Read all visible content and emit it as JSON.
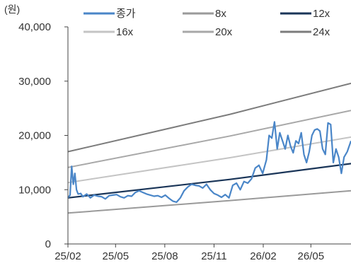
{
  "chart_data": {
    "type": "line",
    "unit": "(원)",
    "ylim": [
      0,
      40000
    ],
    "yticks": [
      0,
      10000,
      20000,
      30000,
      40000
    ],
    "ytick_labels": [
      "0",
      "10,000",
      "20,000",
      "30,000",
      "40,000"
    ],
    "xlim": [
      "2025-02-01",
      "2026-07-15"
    ],
    "xticks": [
      "2025-02-01",
      "2025-05-01",
      "2025-08-01",
      "2025-11-01",
      "2026-02-01",
      "2026-05-01"
    ],
    "xtick_labels": [
      "25/02",
      "25/05",
      "25/08",
      "25/11",
      "26/02",
      "26/05"
    ],
    "grid": false,
    "legend_position": "top",
    "band_dates": [
      "2025-02-01",
      "2025-12-01",
      "2026-07-15"
    ],
    "series": [
      {
        "name": "종가",
        "color": "#4a86c8",
        "width": 2.2,
        "x": [
          "2025-02-01",
          "2025-02-05",
          "2025-02-08",
          "2025-02-11",
          "2025-02-14",
          "2025-02-17",
          "2025-02-20",
          "2025-02-25",
          "2025-03-01",
          "2025-03-08",
          "2025-03-15",
          "2025-03-22",
          "2025-03-29",
          "2025-04-05",
          "2025-04-12",
          "2025-04-19",
          "2025-04-26",
          "2025-05-03",
          "2025-05-10",
          "2025-05-17",
          "2025-05-24",
          "2025-05-31",
          "2025-06-07",
          "2025-06-14",
          "2025-06-21",
          "2025-06-28",
          "2025-07-05",
          "2025-07-12",
          "2025-07-19",
          "2025-07-26",
          "2025-08-02",
          "2025-08-09",
          "2025-08-16",
          "2025-08-23",
          "2025-08-30",
          "2025-09-06",
          "2025-09-13",
          "2025-09-20",
          "2025-09-27",
          "2025-10-04",
          "2025-10-11",
          "2025-10-18",
          "2025-10-25",
          "2025-11-01",
          "2025-11-08",
          "2025-11-15",
          "2025-11-22",
          "2025-11-29",
          "2025-12-06",
          "2025-12-13",
          "2025-12-20",
          "2025-12-27",
          "2026-01-03",
          "2026-01-10",
          "2026-01-17",
          "2026-01-24",
          "2026-01-31",
          "2026-02-07",
          "2026-02-12",
          "2026-02-17",
          "2026-02-22",
          "2026-02-27",
          "2026-03-04",
          "2026-03-09",
          "2026-03-14",
          "2026-03-19",
          "2026-03-24",
          "2026-03-29",
          "2026-04-03",
          "2026-04-08",
          "2026-04-13",
          "2026-04-18",
          "2026-04-23",
          "2026-04-28",
          "2026-05-03",
          "2026-05-08",
          "2026-05-13",
          "2026-05-18",
          "2026-05-23",
          "2026-05-28",
          "2026-06-02",
          "2026-06-07",
          "2026-06-12",
          "2026-06-17",
          "2026-06-22",
          "2026-06-27",
          "2026-07-02",
          "2026-07-08",
          "2026-07-15"
        ],
        "y": [
          8500,
          9000,
          14300,
          11000,
          13000,
          10000,
          9200,
          9300,
          8700,
          9200,
          8500,
          9000,
          8800,
          8700,
          8300,
          8900,
          9000,
          9100,
          8700,
          8500,
          8900,
          8800,
          9500,
          9800,
          9500,
          9200,
          9000,
          8800,
          8900,
          8600,
          9000,
          8400,
          7900,
          7700,
          8500,
          9800,
          10500,
          11000,
          10800,
          10700,
          10300,
          11000,
          10000,
          9300,
          9000,
          8600,
          9100,
          8500,
          10800,
          11200,
          10000,
          11500,
          11200,
          12000,
          14000,
          14500,
          13000,
          15500,
          20000,
          19500,
          22500,
          17500,
          20500,
          19000,
          17500,
          20000,
          18000,
          16800,
          19000,
          18500,
          20500,
          16500,
          15000,
          17000,
          20000,
          21000,
          21200,
          20800,
          17500,
          16500,
          22300,
          22000,
          15000,
          17500,
          16000,
          13000,
          16000,
          17000,
          19000
        ]
      },
      {
        "name": "8x",
        "color": "#9a9a9a",
        "width": 2,
        "values": [
          5700,
          8000,
          9800
        ]
      },
      {
        "name": "12x",
        "color": "#1a3558",
        "width": 2.2,
        "values": [
          8500,
          11900,
          14800
        ]
      },
      {
        "name": "16x",
        "color": "#c4c4c4",
        "width": 2,
        "values": [
          11300,
          15900,
          19700
        ]
      },
      {
        "name": "20x",
        "color": "#a8a8a8",
        "width": 2,
        "values": [
          14100,
          19900,
          24600
        ]
      },
      {
        "name": "24x",
        "color": "#7c7c7c",
        "width": 2,
        "values": [
          17000,
          23900,
          29600
        ]
      }
    ]
  }
}
